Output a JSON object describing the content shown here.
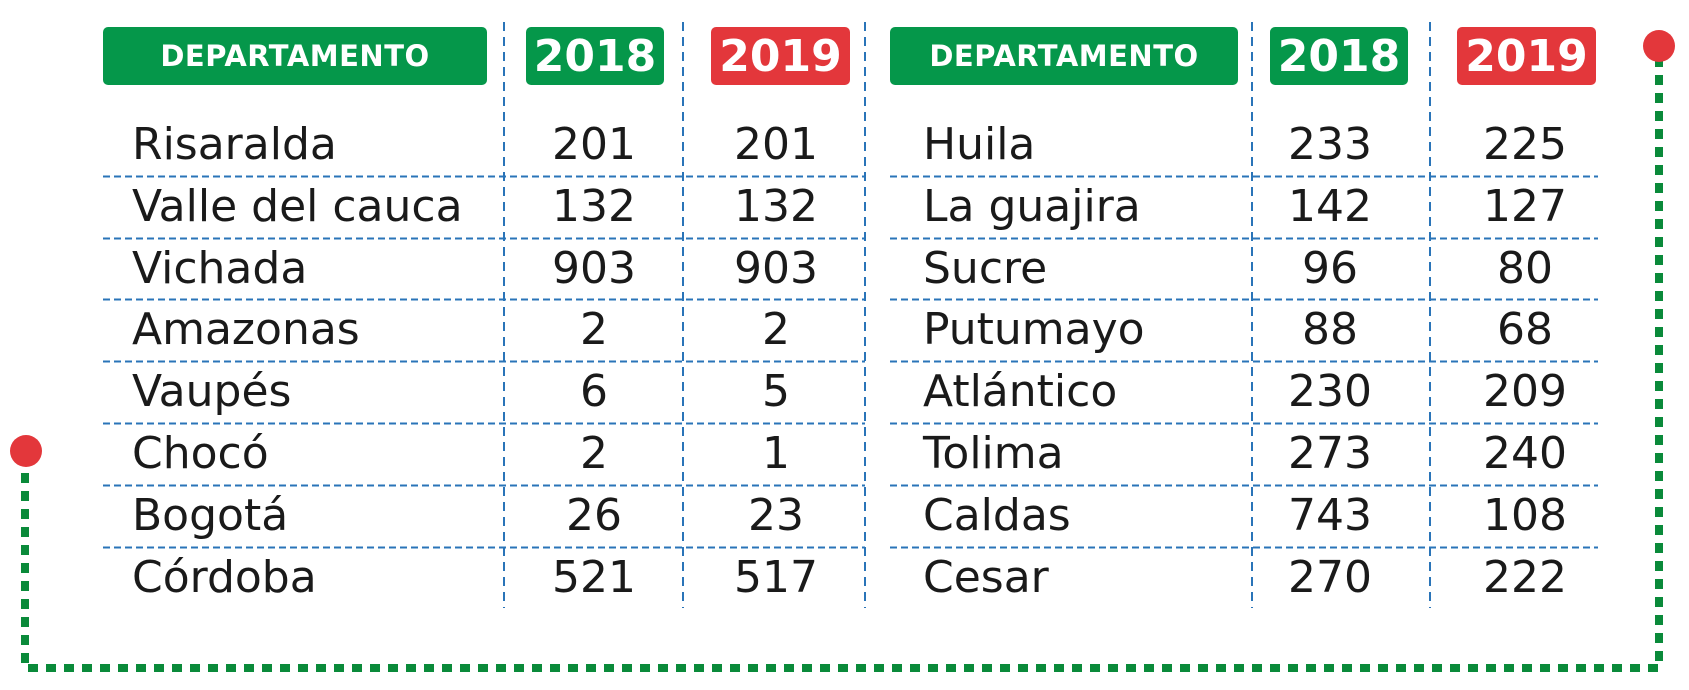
{
  "colors": {
    "green": "#05974a",
    "red": "#e3373b",
    "grid_blue": "#2a74b8",
    "frame_green": "#0a8a3a",
    "dot_red": "#e3373b"
  },
  "chart_data": [
    {
      "type": "table",
      "headers": [
        "DEPARTAMENTO",
        "2018",
        "2019"
      ],
      "rows": [
        [
          "Risaralda",
          "201",
          "201"
        ],
        [
          "Valle del cauca",
          "132",
          "132"
        ],
        [
          "Vichada",
          "903",
          "903"
        ],
        [
          "Amazonas",
          "2",
          "2"
        ],
        [
          "Vaupés",
          "6",
          "5"
        ],
        [
          "Chocó",
          "2",
          "1"
        ],
        [
          "Bogotá",
          "26",
          "23"
        ],
        [
          "Córdoba",
          "521",
          "517"
        ]
      ]
    },
    {
      "type": "table",
      "headers": [
        "DEPARTAMENTO",
        "2018",
        "2019"
      ],
      "rows": [
        [
          "Huila",
          "233",
          "225"
        ],
        [
          "La guajira",
          "142",
          "127"
        ],
        [
          "Sucre",
          "96",
          "80"
        ],
        [
          "Putumayo",
          "88",
          "68"
        ],
        [
          "Atlántico",
          "230",
          "209"
        ],
        [
          "Tolima",
          "273",
          "240"
        ],
        [
          "Caldas",
          "743",
          "108"
        ],
        [
          "Cesar",
          "270",
          "222"
        ]
      ]
    }
  ]
}
